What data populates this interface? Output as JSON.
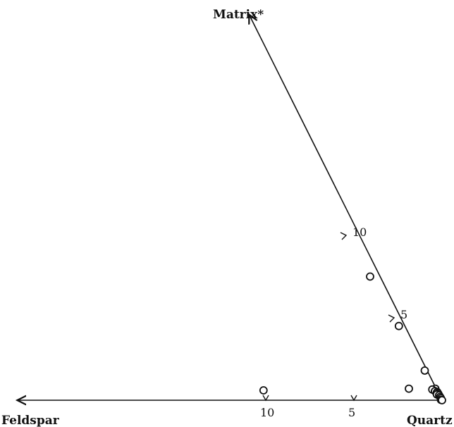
{
  "chart_data": {
    "type": "scatter",
    "diagram": "ternary",
    "axes": {
      "apex_top": "Matrix*",
      "apex_left": "Feldspar",
      "apex_right": "Quartz"
    },
    "feldspar_ticks": [
      10,
      5
    ],
    "matrix_ticks": [
      10,
      5
    ],
    "points": [
      {
        "feldspar": 0.0,
        "matrix": 7.5
      },
      {
        "feldspar": 0.0,
        "matrix": 4.5
      },
      {
        "feldspar": 0.0,
        "matrix": 1.8
      },
      {
        "feldspar": 9.8,
        "matrix": 0.6
      },
      {
        "feldspar": 1.5,
        "matrix": 0.7
      },
      {
        "feldspar": 0.0,
        "matrix": 0.7
      },
      {
        "feldspar": 0.2,
        "matrix": 0.65
      },
      {
        "feldspar": 0.1,
        "matrix": 0.55
      },
      {
        "feldspar": 0.0,
        "matrix": 0.5
      },
      {
        "feldspar": 0.05,
        "matrix": 0.45
      },
      {
        "feldspar": 0.0,
        "matrix": 0.4
      },
      {
        "feldspar": 0.1,
        "matrix": 0.35
      },
      {
        "feldspar": 0.0,
        "matrix": 0.3
      },
      {
        "feldspar": 0.0,
        "matrix": 0.2
      },
      {
        "feldspar": 0.0,
        "matrix": 0.12
      },
      {
        "feldspar": 0.05,
        "matrix": 0.02
      },
      {
        "feldspar": 0.0,
        "matrix": 0.0
      }
    ]
  }
}
